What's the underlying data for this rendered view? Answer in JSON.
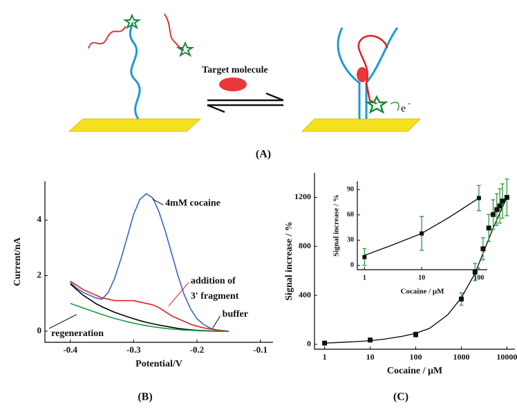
{
  "figure": {
    "target_label": "Target molecule",
    "electron": "e",
    "electron_charge": "-",
    "panel_labels": [
      "(A)",
      "(B)",
      "(C)"
    ]
  },
  "chart_data": [
    {
      "type": "line",
      "x_label": "Potential/V",
      "y_label": "Current/nA",
      "x": [
        -0.4,
        -0.39,
        -0.38,
        -0.37,
        -0.36,
        -0.35,
        -0.34,
        -0.33,
        -0.32,
        -0.31,
        -0.3,
        -0.29,
        -0.28,
        -0.27,
        -0.26,
        -0.25,
        -0.24,
        -0.23,
        -0.22,
        -0.21,
        -0.2,
        -0.19,
        -0.18,
        -0.17,
        -0.16,
        -0.15
      ],
      "series": [
        {
          "color": "#3a5fcd",
          "values": [
            1.75,
            1.55,
            1.4,
            1.3,
            1.2,
            1.15,
            1.4,
            1.9,
            2.6,
            3.4,
            4.2,
            4.75,
            4.95,
            4.8,
            4.3,
            3.6,
            2.8,
            2.0,
            1.3,
            0.8,
            0.45,
            0.25,
            0.12,
            0.05,
            0.02,
            0.0
          ]
        },
        {
          "color": "#e02020",
          "values": [
            1.8,
            1.65,
            1.5,
            1.4,
            1.3,
            1.2,
            1.15,
            1.1,
            1.1,
            1.1,
            1.1,
            1.05,
            1.0,
            0.95,
            0.85,
            0.7,
            0.55,
            0.45,
            0.35,
            0.25,
            0.18,
            0.12,
            0.08,
            0.04,
            0.02,
            0.0
          ]
        },
        {
          "color": "#000000",
          "values": [
            1.7,
            1.5,
            1.3,
            1.15,
            1.0,
            0.88,
            0.78,
            0.68,
            0.6,
            0.52,
            0.45,
            0.38,
            0.32,
            0.27,
            0.22,
            0.18,
            0.14,
            0.1,
            0.07,
            0.05,
            0.03,
            0.02,
            0.01,
            0.0,
            0.0,
            0.0
          ]
        },
        {
          "color": "#1a9a3a",
          "values": [
            1.0,
            0.92,
            0.84,
            0.76,
            0.68,
            0.6,
            0.53,
            0.46,
            0.4,
            0.34,
            0.29,
            0.24,
            0.2,
            0.16,
            0.13,
            0.1,
            0.08,
            0.06,
            0.04,
            0.03,
            0.02,
            0.01,
            0.0,
            0.0,
            0.0,
            0.0
          ]
        }
      ],
      "annotations": [
        [
          "4mM cocaine"
        ],
        [
          "addition of",
          "3' fragment"
        ],
        [
          "buffer"
        ],
        [
          "regeneration"
        ]
      ],
      "xlim": [
        -0.44,
        -0.08
      ],
      "xticks": [
        -0.4,
        -0.3,
        -0.2,
        -0.1
      ],
      "ylim": [
        -0.4,
        5.4
      ],
      "yticks": [
        0,
        2,
        4
      ]
    },
    {
      "type": "scatter",
      "x_label": "Cocaine / μM",
      "y_label": "Signal increase / %",
      "log_x": true,
      "marker_color": "#111111",
      "error_color": "#2a9a3a",
      "fit_color": "#000000",
      "points": {
        "x": [
          1,
          10,
          100,
          1000,
          2000,
          3000,
          4000,
          5000,
          6000,
          7000,
          8000,
          10000
        ],
        "values": [
          10,
          35,
          80,
          370,
          590,
          780,
          950,
          1060,
          1100,
          1130,
          1170,
          1200
        ],
        "errors": [
          10,
          15,
          20,
          50,
          70,
          90,
          110,
          120,
          130,
          140,
          140,
          150
        ]
      },
      "fit": {
        "x": [
          1,
          2,
          5,
          10,
          20,
          50,
          100,
          200,
          500,
          1000,
          2000,
          5000,
          10000
        ],
        "values": [
          10,
          15,
          22,
          30,
          42,
          65,
          90,
          130,
          240,
          380,
          580,
          950,
          1200
        ]
      },
      "xlim": [
        0.6,
        15000
      ],
      "xticks": [
        1,
        10,
        100,
        1000,
        10000
      ],
      "ylim": [
        -40,
        1400
      ],
      "yticks": [
        0,
        400,
        800,
        1200
      ]
    },
    {
      "type": "scatter",
      "x_label": "Cocaine / μM",
      "y_label": "Signal increase / %",
      "log_x": true,
      "marker_color": "#111111",
      "error_color": "#2a9a3a",
      "fit_color": "#000000",
      "points": {
        "x": [
          1,
          10,
          100
        ],
        "values": [
          10,
          38,
          80
        ],
        "errors": [
          10,
          20,
          15
        ]
      },
      "fit": {
        "x": [
          1,
          3,
          10,
          30,
          100
        ],
        "values": [
          12,
          24,
          38,
          57,
          80
        ]
      },
      "xlim": [
        0.75,
        140
      ],
      "xticks": [
        1,
        10,
        100
      ],
      "ylim": [
        -5,
        100
      ],
      "yticks": [
        0,
        30,
        60,
        90
      ]
    }
  ]
}
